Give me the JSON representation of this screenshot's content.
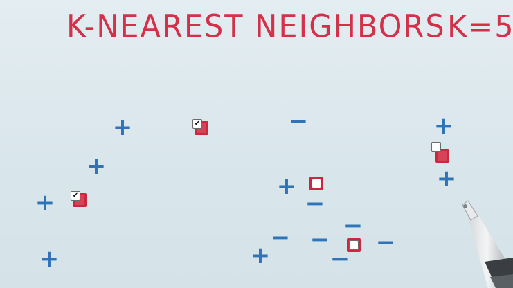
{
  "title": "K-NEAREST NEIGHBORS",
  "k_label": "K=5",
  "colors": {
    "title": "#d3314a",
    "marker": "#2f73b8",
    "query": "#c9283f"
  },
  "left_group": {
    "plus_marks": [
      {
        "id": "p1",
        "symbol": "+"
      },
      {
        "id": "p2",
        "symbol": "+"
      },
      {
        "id": "p3",
        "symbol": "+"
      },
      {
        "id": "p4",
        "symbol": "+"
      }
    ],
    "queries": [
      {
        "id": "q1",
        "checked": true,
        "check": "✔"
      },
      {
        "id": "q2",
        "checked": true,
        "check": "✔"
      }
    ]
  },
  "middle_group": {
    "plus_marks": [
      {
        "id": "p5",
        "symbol": "+"
      },
      {
        "id": "p6",
        "symbol": "+"
      }
    ],
    "minus_marks": [
      {
        "id": "m1",
        "symbol": "−"
      },
      {
        "id": "m2",
        "symbol": "−"
      },
      {
        "id": "m3",
        "symbol": "−"
      },
      {
        "id": "m4",
        "symbol": "−"
      },
      {
        "id": "m5",
        "symbol": "−"
      },
      {
        "id": "m6",
        "symbol": "−"
      },
      {
        "id": "m7",
        "symbol": "−"
      }
    ],
    "queries": [
      {
        "id": "q3",
        "checked": false,
        "check": ""
      },
      {
        "id": "q4",
        "checked": false,
        "check": ""
      }
    ]
  },
  "right_group": {
    "plus_marks": [
      {
        "id": "p7",
        "symbol": "+"
      },
      {
        "id": "p8",
        "symbol": "+"
      }
    ],
    "queries": [
      {
        "id": "q5",
        "checked": false,
        "check": ""
      }
    ]
  }
}
